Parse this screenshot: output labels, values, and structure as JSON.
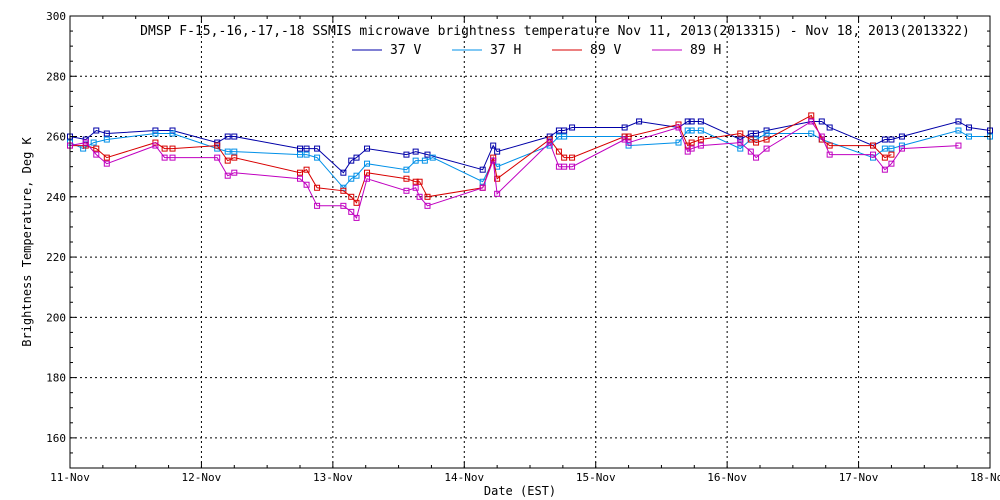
{
  "chart_data": {
    "type": "line",
    "title": "DMSP F-15,-16,-17,-18 SSMIS microwave brightness temperature Nov 11, 2013(2013315) - Nov 18, 2013(2013322)",
    "xlabel": "Date (EST)",
    "ylabel": "Brightness Temperature, Deg K",
    "xlim": [
      0,
      7
    ],
    "ylim": [
      150,
      300
    ],
    "xticks": [
      {
        "v": 0,
        "label": "11-Nov"
      },
      {
        "v": 1,
        "label": "12-Nov"
      },
      {
        "v": 2,
        "label": "13-Nov"
      },
      {
        "v": 3,
        "label": "14-Nov"
      },
      {
        "v": 4,
        "label": "15-Nov"
      },
      {
        "v": 5,
        "label": "16-Nov"
      },
      {
        "v": 6,
        "label": "17-Nov"
      },
      {
        "v": 7,
        "label": "18-Nov"
      }
    ],
    "yticks": [
      160,
      180,
      200,
      220,
      240,
      260,
      280,
      300
    ],
    "grid": true,
    "legend_position": "top-center",
    "series": [
      {
        "name": "37 V",
        "color": "#0000a8",
        "points": [
          [
            0.0,
            260
          ],
          [
            0.12,
            259
          ],
          [
            0.2,
            262
          ],
          [
            0.28,
            261
          ],
          [
            0.65,
            262
          ],
          [
            0.78,
            262
          ],
          [
            1.12,
            258
          ],
          [
            1.2,
            260
          ],
          [
            1.25,
            260
          ],
          [
            1.75,
            256
          ],
          [
            1.8,
            256
          ],
          [
            1.88,
            256
          ],
          [
            2.08,
            248
          ],
          [
            2.14,
            252
          ],
          [
            2.18,
            253
          ],
          [
            2.26,
            256
          ],
          [
            2.56,
            254
          ],
          [
            2.63,
            255
          ],
          [
            2.72,
            254
          ],
          [
            3.14,
            249
          ],
          [
            3.22,
            257
          ],
          [
            3.25,
            255
          ],
          [
            3.65,
            260
          ],
          [
            3.72,
            262
          ],
          [
            3.76,
            262
          ],
          [
            3.82,
            263
          ],
          [
            4.22,
            263
          ],
          [
            4.33,
            265
          ],
          [
            4.63,
            263
          ],
          [
            4.7,
            265
          ],
          [
            4.73,
            265
          ],
          [
            4.8,
            265
          ],
          [
            5.1,
            259
          ],
          [
            5.18,
            261
          ],
          [
            5.22,
            261
          ],
          [
            5.3,
            262
          ],
          [
            5.64,
            265
          ],
          [
            5.72,
            265
          ],
          [
            5.78,
            263
          ],
          [
            6.11,
            257
          ],
          [
            6.2,
            259
          ],
          [
            6.25,
            259
          ],
          [
            6.33,
            260
          ],
          [
            6.76,
            265
          ],
          [
            6.84,
            263
          ],
          [
            7.0,
            262
          ]
        ]
      },
      {
        "name": "37 H",
        "color": "#0090e8",
        "points": [
          [
            0.0,
            258
          ],
          [
            0.1,
            256
          ],
          [
            0.18,
            258
          ],
          [
            0.28,
            259
          ],
          [
            0.65,
            261
          ],
          [
            0.78,
            261
          ],
          [
            1.12,
            256
          ],
          [
            1.2,
            255
          ],
          [
            1.25,
            255
          ],
          [
            1.75,
            254
          ],
          [
            1.8,
            254
          ],
          [
            1.88,
            253
          ],
          [
            2.08,
            243
          ],
          [
            2.14,
            246
          ],
          [
            2.18,
            247
          ],
          [
            2.26,
            251
          ],
          [
            2.56,
            249
          ],
          [
            2.63,
            252
          ],
          [
            2.7,
            252
          ],
          [
            2.76,
            253
          ],
          [
            3.14,
            245
          ],
          [
            3.22,
            252
          ],
          [
            3.25,
            250
          ],
          [
            3.65,
            257
          ],
          [
            3.72,
            260
          ],
          [
            3.76,
            260
          ],
          [
            4.22,
            260
          ],
          [
            4.25,
            257
          ],
          [
            4.63,
            258
          ],
          [
            4.7,
            262
          ],
          [
            4.73,
            262
          ],
          [
            4.8,
            262
          ],
          [
            5.1,
            256
          ],
          [
            5.18,
            259
          ],
          [
            5.22,
            259
          ],
          [
            5.3,
            261
          ],
          [
            5.64,
            261
          ],
          [
            5.72,
            259
          ],
          [
            6.11,
            253
          ],
          [
            6.2,
            256
          ],
          [
            6.25,
            256
          ],
          [
            6.33,
            257
          ],
          [
            6.76,
            262
          ],
          [
            6.84,
            260
          ],
          [
            7.0,
            260
          ]
        ]
      },
      {
        "name": "89 V",
        "color": "#d80000",
        "points": [
          [
            0.0,
            257
          ],
          [
            0.12,
            257
          ],
          [
            0.2,
            256
          ],
          [
            0.28,
            253
          ],
          [
            0.65,
            258
          ],
          [
            0.72,
            256
          ],
          [
            0.78,
            256
          ],
          [
            1.12,
            257
          ],
          [
            1.2,
            252
          ],
          [
            1.25,
            253
          ],
          [
            1.75,
            248
          ],
          [
            1.8,
            249
          ],
          [
            1.88,
            243
          ],
          [
            2.08,
            242
          ],
          [
            2.14,
            240
          ],
          [
            2.18,
            238
          ],
          [
            2.26,
            248
          ],
          [
            2.56,
            246
          ],
          [
            2.63,
            245
          ],
          [
            2.66,
            245
          ],
          [
            2.72,
            240
          ],
          [
            3.14,
            243
          ],
          [
            3.22,
            253
          ],
          [
            3.25,
            246
          ],
          [
            3.65,
            259
          ],
          [
            3.72,
            255
          ],
          [
            3.76,
            253
          ],
          [
            3.82,
            253
          ],
          [
            4.22,
            260
          ],
          [
            4.25,
            260
          ],
          [
            4.63,
            264
          ],
          [
            4.7,
            257
          ],
          [
            4.73,
            258
          ],
          [
            4.8,
            259
          ],
          [
            5.1,
            261
          ],
          [
            5.18,
            259
          ],
          [
            5.22,
            258
          ],
          [
            5.3,
            259
          ],
          [
            5.64,
            267
          ],
          [
            5.72,
            259
          ],
          [
            5.78,
            257
          ],
          [
            6.11,
            257
          ],
          [
            6.2,
            253
          ],
          [
            6.25,
            254
          ]
        ]
      },
      {
        "name": "89 H",
        "color": "#c000c0",
        "points": [
          [
            0.0,
            257
          ],
          [
            0.12,
            258
          ],
          [
            0.2,
            254
          ],
          [
            0.28,
            251
          ],
          [
            0.65,
            257
          ],
          [
            0.72,
            253
          ],
          [
            0.78,
            253
          ],
          [
            1.12,
            253
          ],
          [
            1.2,
            247
          ],
          [
            1.25,
            248
          ],
          [
            1.75,
            246
          ],
          [
            1.8,
            244
          ],
          [
            1.88,
            237
          ],
          [
            2.08,
            237
          ],
          [
            2.14,
            235
          ],
          [
            2.18,
            233
          ],
          [
            2.26,
            246
          ],
          [
            2.56,
            242
          ],
          [
            2.63,
            243
          ],
          [
            2.66,
            240
          ],
          [
            2.72,
            237
          ],
          [
            3.14,
            243
          ],
          [
            3.22,
            252
          ],
          [
            3.25,
            241
          ],
          [
            3.65,
            258
          ],
          [
            3.72,
            250
          ],
          [
            3.76,
            250
          ],
          [
            3.82,
            250
          ],
          [
            4.22,
            259
          ],
          [
            4.25,
            258
          ],
          [
            4.63,
            263
          ],
          [
            4.7,
            255
          ],
          [
            4.73,
            256
          ],
          [
            4.8,
            257
          ],
          [
            5.1,
            258
          ],
          [
            5.18,
            255
          ],
          [
            5.22,
            253
          ],
          [
            5.3,
            256
          ],
          [
            5.64,
            265
          ],
          [
            5.72,
            260
          ],
          [
            5.78,
            254
          ],
          [
            6.11,
            254
          ],
          [
            6.2,
            249
          ],
          [
            6.25,
            251
          ],
          [
            6.33,
            256
          ],
          [
            6.76,
            257
          ]
        ]
      }
    ]
  }
}
